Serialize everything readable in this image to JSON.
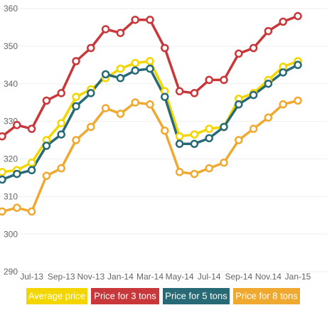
{
  "chart_data": {
    "type": "line",
    "categories": [
      null,
      null,
      "Jul-13",
      null,
      "Sep-13",
      null,
      "Nov-13",
      null,
      "Jan-14",
      null,
      "Mar-14",
      null,
      "May-14",
      null,
      "Jul-14",
      null,
      "Sep-14",
      null,
      "Nov.14",
      null,
      "Jan-15"
    ],
    "series": [
      {
        "name": "Average price",
        "color": "#f3d600",
        "values": [
          316.5,
          317,
          319,
          325,
          329.5,
          336.5,
          338.5,
          341.5,
          344,
          345.5,
          346,
          338,
          326,
          326.5,
          328,
          328.5,
          336,
          337.5,
          341,
          344.5,
          346
        ]
      },
      {
        "name": "Price for 3 tons",
        "color": "#c8373a",
        "values": [
          326,
          329,
          328,
          335.5,
          337.5,
          346,
          349.5,
          354.5,
          353.5,
          357,
          357,
          349.5,
          338,
          337.5,
          341,
          341,
          348,
          349.5,
          354,
          356.5,
          358
        ]
      },
      {
        "name": "Price for 5 tons",
        "color": "#276a75",
        "values": [
          314.5,
          316,
          317,
          323.5,
          326.5,
          334,
          337.5,
          342.5,
          341.5,
          343.5,
          344,
          336.5,
          324,
          324,
          325.5,
          328.5,
          334.5,
          337,
          340,
          343,
          345
        ]
      },
      {
        "name": "Price for 8 tons",
        "color": "#f0a930",
        "values": [
          306,
          307,
          306,
          315.5,
          317.5,
          325,
          328.5,
          333.5,
          332,
          335,
          334.5,
          327.5,
          316.5,
          316,
          317.5,
          319,
          325,
          328,
          331,
          334.5,
          335.5
        ]
      }
    ],
    "ylim": [
      290,
      360
    ],
    "yticks": [
      290,
      300,
      310,
      320,
      330,
      340,
      350,
      360
    ],
    "grid": true
  }
}
